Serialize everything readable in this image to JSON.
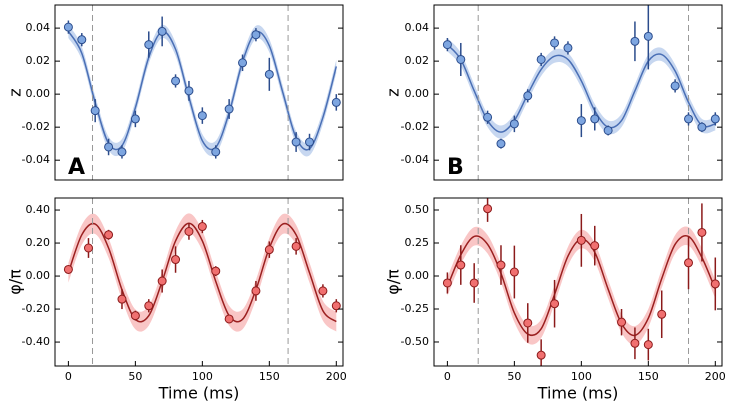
{
  "chart_data": [
    {
      "type": "scatter",
      "ylabel": "z",
      "label": "A",
      "xlim": [
        -10,
        205
      ],
      "ylim": [
        -0.052,
        0.054
      ],
      "yticks": [
        0.04,
        0.02,
        {
          "value": 0,
          "label": "0.00"
        },
        -0.02,
        -0.04
      ],
      "x": [
        0,
        10,
        20,
        30,
        40,
        50,
        60,
        70,
        80,
        90,
        100,
        110,
        120,
        130,
        140,
        150,
        170,
        180,
        200
      ],
      "values": [
        0.0406,
        0.033,
        -0.01,
        -0.032,
        -0.035,
        -0.015,
        0.03,
        0.038,
        0.008,
        0.002,
        -0.013,
        -0.035,
        -0.009,
        0.019,
        0.036,
        0.012,
        -0.029,
        -0.029,
        -0.005
      ],
      "errors": [
        0.004,
        0.004,
        0.007,
        0.005,
        0.004,
        0.005,
        0.008,
        0.009,
        0.004,
        0.006,
        0.005,
        0.004,
        0.006,
        0.005,
        0.004,
        0.01,
        0.006,
        0.005,
        0.005
      ],
      "curve_x": [
        0,
        10,
        20,
        30,
        40,
        50,
        60,
        70,
        80,
        90,
        100,
        110,
        120,
        130,
        140,
        150,
        160,
        170,
        180,
        190,
        200
      ],
      "curve": [
        0.038,
        0.0248,
        -0.0051,
        -0.0298,
        -0.0312,
        -0.0082,
        0.0223,
        0.0379,
        0.0272,
        -0.002,
        -0.0282,
        -0.0322,
        -0.0112,
        0.0196,
        0.0374,
        0.0293,
        0.0012,
        -0.0264,
        -0.0331,
        -0.0141,
        0.0168
      ],
      "band": 0.004,
      "vlines": [
        18,
        164
      ],
      "color": "#7ea6e0",
      "edge_color": "#2b4c8c",
      "curve_color": "#4a6fb5",
      "band_color": "#b9cdec"
    },
    {
      "type": "scatter",
      "ylabel": "φ/π",
      "xlabel": "Time (ms)",
      "xlim": [
        -10,
        205
      ],
      "ylim": [
        -0.545,
        0.473
      ],
      "xticks": [
        0,
        50,
        100,
        150,
        200
      ],
      "yticks": [
        {
          "value": 0.4,
          "label": "0.40"
        },
        {
          "value": 0.2,
          "label": "0.20"
        },
        {
          "value": 0,
          "label": "0.00"
        },
        {
          "value": -0.2,
          "label": "-0.20"
        },
        {
          "value": -0.4,
          "label": "-0.40"
        }
      ],
      "x": [
        0,
        15,
        30,
        40,
        50,
        60,
        70,
        80,
        90,
        100,
        110,
        120,
        140,
        150,
        170,
        190,
        200
      ],
      "values": [
        0.04,
        0.17,
        0.25,
        -0.14,
        -0.24,
        -0.18,
        -0.03,
        0.1,
        0.27,
        0.3,
        0.03,
        -0.26,
        -0.09,
        0.16,
        0.18,
        -0.09,
        -0.18
      ],
      "errors": [
        0.02,
        0.06,
        0.03,
        0.06,
        0.03,
        0.04,
        0.07,
        0.08,
        0.05,
        0.04,
        0.03,
        0.02,
        0.06,
        0.05,
        0.05,
        0.04,
        0.04
      ],
      "curve_x": [
        0,
        10,
        20,
        30,
        40,
        50,
        60,
        70,
        80,
        90,
        100,
        110,
        120,
        130,
        140,
        150,
        160,
        170,
        180,
        190,
        200
      ],
      "curve": [
        0.02,
        0.25,
        0.315,
        0.17,
        -0.083,
        -0.262,
        -0.24,
        -0.032,
        0.213,
        0.32,
        0.213,
        -0.032,
        -0.24,
        -0.262,
        -0.083,
        0.17,
        0.315,
        0.25,
        0.02,
        -0.21,
        -0.276
      ],
      "band": 0.06,
      "vlines": [
        18,
        164
      ],
      "color": "#f07070",
      "edge_color": "#8b1a1a",
      "curve_color": "#9b2020",
      "band_color": "#f7b8b8"
    },
    {
      "type": "scatter",
      "ylabel": "z",
      "label": "B",
      "xlim": [
        -10,
        205
      ],
      "ylim": [
        -0.052,
        0.054
      ],
      "yticks": [
        0.04,
        0.02,
        {
          "value": 0,
          "label": "0.00"
        },
        -0.02,
        -0.04
      ],
      "x": [
        0,
        10,
        30,
        40,
        50,
        60,
        70,
        80,
        90,
        100,
        110,
        120,
        140,
        150,
        170,
        180,
        190,
        200
      ],
      "values": [
        0.03,
        0.021,
        -0.014,
        -0.03,
        -0.018,
        -0.001,
        0.021,
        0.031,
        0.028,
        -0.016,
        -0.015,
        -0.022,
        0.032,
        0.035,
        0.005,
        -0.015,
        -0.02,
        -0.015
      ],
      "errors": [
        0.004,
        0.01,
        0.004,
        0.003,
        0.005,
        0.004,
        0.004,
        0.004,
        0.004,
        0.01,
        0.007,
        0.003,
        0.012,
        0.02,
        0.004,
        0.004,
        0.003,
        0.004
      ],
      "curve_x": [
        0,
        10,
        20,
        30,
        40,
        50,
        60,
        70,
        80,
        90,
        100,
        110,
        120,
        130,
        140,
        150,
        160,
        170,
        180,
        190,
        200
      ],
      "curve": [
        0.03,
        0.021,
        0.002,
        -0.016,
        -0.023,
        -0.016,
        0.0,
        0.015,
        0.023,
        0.021,
        0.008,
        -0.01,
        -0.02,
        -0.016,
        0.002,
        0.02,
        0.024,
        0.014,
        -0.005,
        -0.019,
        -0.018
      ],
      "band": 0.004,
      "vlines": [
        23,
        180
      ],
      "color": "#7ea6e0",
      "edge_color": "#2b4c8c",
      "curve_color": "#4a6fb5",
      "band_color": "#b9cdec"
    },
    {
      "type": "scatter",
      "ylabel": "φ/π",
      "xlabel": "Time (ms)",
      "xlim": [
        -10,
        205
      ],
      "ylim": [
        -0.682,
        0.591
      ],
      "xticks": [
        0,
        50,
        100,
        150,
        200
      ],
      "yticks": [
        {
          "value": 0.5,
          "label": "0.50"
        },
        0.25,
        {
          "value": 0,
          "label": "0.00"
        },
        -0.25,
        {
          "value": -0.5,
          "label": "-0.50"
        }
      ],
      "x": [
        0,
        10,
        20,
        30,
        40,
        50,
        60,
        70,
        80,
        100,
        110,
        130,
        140,
        150,
        160,
        180,
        190,
        200
      ],
      "values": [
        -0.053,
        0.083,
        -0.053,
        0.51,
        0.083,
        0.03,
        -0.356,
        -0.6,
        -0.21,
        0.27,
        0.23,
        -0.35,
        -0.51,
        -0.52,
        -0.29,
        0.1,
        0.33,
        -0.06
      ],
      "errors": [
        0.08,
        0.15,
        0.15,
        0.1,
        0.15,
        0.2,
        0.15,
        0.12,
        0.18,
        0.2,
        0.15,
        0.1,
        0.12,
        0.12,
        0.18,
        0.2,
        0.22,
        0.2
      ],
      "curve_x": [
        0,
        10,
        20,
        30,
        40,
        50,
        60,
        70,
        80,
        90,
        100,
        110,
        120,
        130,
        140,
        150,
        160,
        170,
        180,
        190,
        200
      ],
      "curve": [
        -0.08,
        0.16,
        0.3,
        0.24,
        0.02,
        -0.28,
        -0.44,
        -0.4,
        -0.14,
        0.15,
        0.28,
        0.18,
        -0.1,
        -0.36,
        -0.45,
        -0.32,
        -0.02,
        0.24,
        0.3,
        0.14,
        -0.1
      ],
      "band": 0.07,
      "vlines": [
        23,
        180
      ],
      "color": "#f07070",
      "edge_color": "#8b1a1a",
      "curve_color": "#9b2020",
      "band_color": "#f7b8b8"
    }
  ]
}
